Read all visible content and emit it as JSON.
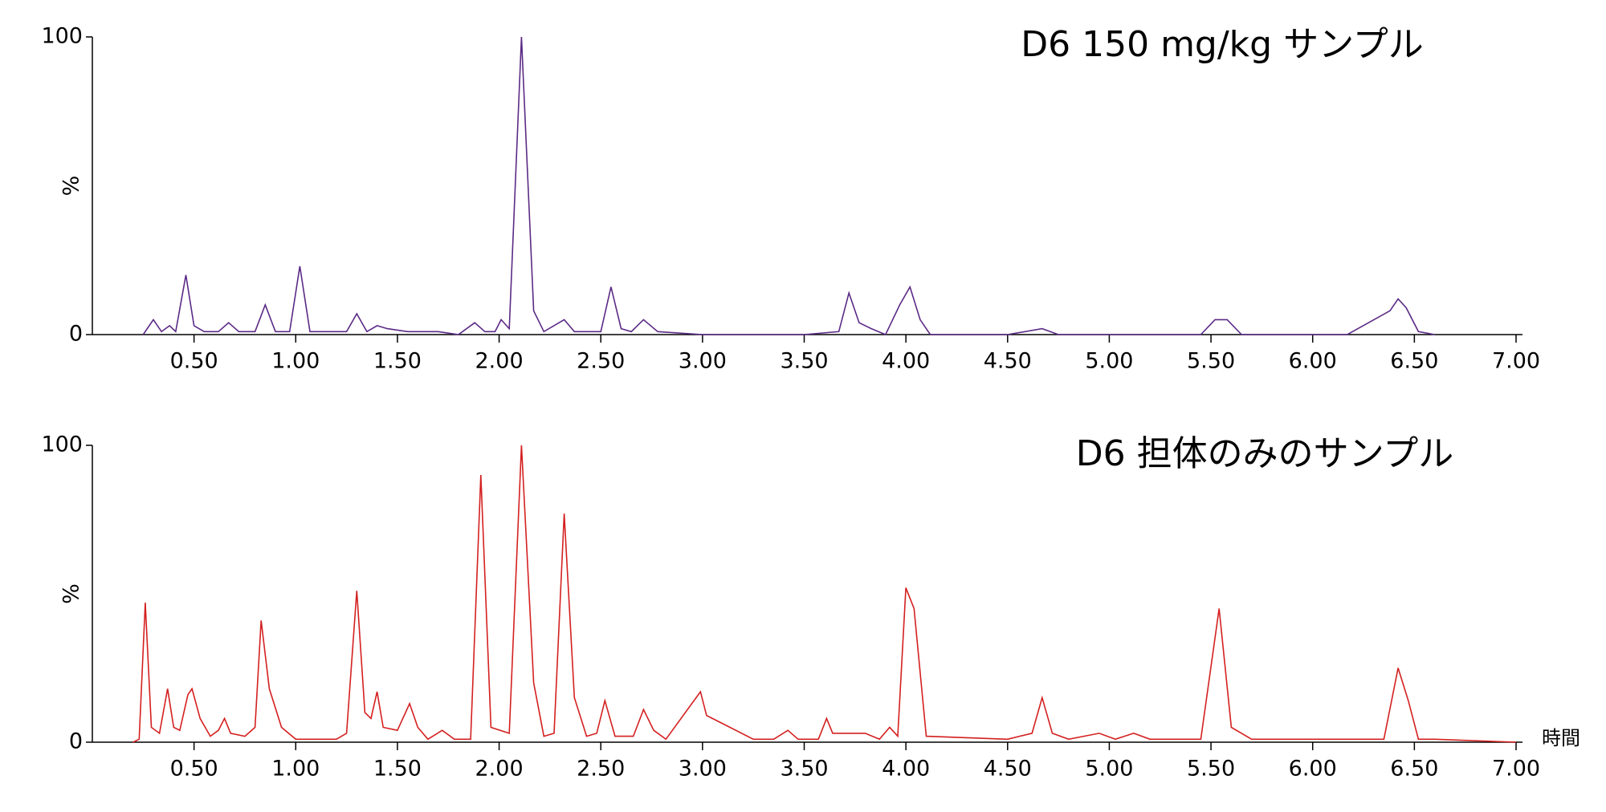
{
  "chart_data": [
    {
      "type": "line",
      "title": "D6 150 mg/kg サンプル",
      "y_label": "%",
      "color": "#5b2a86",
      "x": [
        0.25,
        0.3,
        0.34,
        0.38,
        0.41,
        0.46,
        0.5,
        0.55,
        0.62,
        0.67,
        0.72,
        0.8,
        0.85,
        0.9,
        0.97,
        1.02,
        1.07,
        1.15,
        1.25,
        1.3,
        1.35,
        1.4,
        1.45,
        1.55,
        1.7,
        1.8,
        1.88,
        1.93,
        1.98,
        2.01,
        2.05,
        2.11,
        2.17,
        2.22,
        2.32,
        2.37,
        2.5,
        2.55,
        2.6,
        2.65,
        2.71,
        2.78,
        3.0,
        3.5,
        3.67,
        3.72,
        3.77,
        3.83,
        3.9,
        3.97,
        4.02,
        4.07,
        4.12,
        4.5,
        4.67,
        4.75,
        5.45,
        5.52,
        5.58,
        5.65,
        6.17,
        6.38,
        6.42,
        6.46,
        6.52,
        6.6
      ],
      "values": [
        0,
        5,
        1,
        3,
        1,
        20,
        3,
        1,
        1,
        4,
        1,
        1,
        10,
        1,
        1,
        23,
        1,
        1,
        1,
        7,
        1,
        3,
        2,
        1,
        1,
        0,
        4,
        1,
        1,
        5,
        2,
        100,
        8,
        1,
        5,
        1,
        1,
        16,
        2,
        1,
        5,
        1,
        0,
        0,
        1,
        14,
        4,
        2,
        0,
        10,
        16,
        5,
        0,
        0,
        2,
        0,
        0,
        5,
        5,
        0,
        0,
        8,
        12,
        9,
        1,
        0
      ],
      "xlim": [
        0,
        7
      ],
      "ylim": [
        0,
        100
      ],
      "yticks": [
        0,
        100
      ],
      "xticks": [
        {
          "value": 0.5,
          "label": "0.50"
        },
        {
          "value": 1,
          "label": "1.00"
        },
        {
          "value": 1.5,
          "label": "1.50"
        },
        {
          "value": 2,
          "label": "2.00"
        },
        {
          "value": 2.5,
          "label": "2.50"
        },
        {
          "value": 3,
          "label": "3.00"
        },
        {
          "value": 3.5,
          "label": "3.50"
        },
        {
          "value": 4,
          "label": "4.00"
        },
        {
          "value": 4.5,
          "label": "4.50"
        },
        {
          "value": 5,
          "label": "5.00"
        },
        {
          "value": 5.5,
          "label": "5.50"
        },
        {
          "value": 6,
          "label": "6.00"
        },
        {
          "value": 6.5,
          "label": "6.50"
        },
        {
          "value": 7,
          "label": "7.00"
        }
      ]
    },
    {
      "type": "line",
      "title": "D6 担体のみのサンプル",
      "y_label": "%",
      "x_label": "時間",
      "color": "#d42020",
      "x": [
        0.2,
        0.23,
        0.26,
        0.29,
        0.33,
        0.37,
        0.4,
        0.43,
        0.47,
        0.49,
        0.53,
        0.58,
        0.62,
        0.65,
        0.68,
        0.75,
        0.8,
        0.83,
        0.87,
        0.93,
        1.0,
        1.2,
        1.25,
        1.3,
        1.34,
        1.37,
        1.4,
        1.43,
        1.5,
        1.56,
        1.6,
        1.65,
        1.72,
        1.78,
        1.86,
        1.91,
        1.96,
        2.05,
        2.11,
        2.17,
        2.22,
        2.27,
        2.32,
        2.37,
        2.43,
        2.48,
        2.52,
        2.57,
        2.66,
        2.71,
        2.76,
        2.82,
        2.99,
        3.02,
        3.25,
        3.35,
        3.42,
        3.47,
        3.57,
        3.61,
        3.64,
        3.8,
        3.87,
        3.92,
        3.96,
        4.0,
        4.04,
        4.1,
        4.5,
        4.62,
        4.67,
        4.72,
        4.8,
        4.95,
        5.03,
        5.12,
        5.2,
        5.45,
        5.54,
        5.6,
        5.7,
        6.35,
        6.42,
        6.47,
        6.52,
        6.6,
        7.0
      ],
      "values": [
        0,
        1,
        47,
        5,
        3,
        18,
        5,
        4,
        16,
        18,
        8,
        2,
        4,
        8,
        3,
        2,
        5,
        41,
        18,
        5,
        1,
        1,
        3,
        51,
        10,
        8,
        17,
        5,
        4,
        13,
        5,
        1,
        4,
        1,
        1,
        90,
        5,
        3,
        100,
        20,
        2,
        3,
        77,
        15,
        2,
        3,
        14,
        2,
        2,
        11,
        4,
        1,
        17,
        9,
        1,
        1,
        4,
        1,
        1,
        8,
        3,
        3,
        1,
        5,
        2,
        52,
        45,
        2,
        1,
        3,
        15,
        3,
        1,
        3,
        1,
        3,
        1,
        1,
        45,
        5,
        1,
        1,
        25,
        14,
        1,
        1,
        0
      ],
      "xlim": [
        0,
        7
      ],
      "ylim": [
        0,
        100
      ],
      "yticks": [
        0,
        100
      ],
      "xticks": [
        {
          "value": 0.5,
          "label": "0.50"
        },
        {
          "value": 1,
          "label": "1.00"
        },
        {
          "value": 1.5,
          "label": "1.50"
        },
        {
          "value": 2,
          "label": "2.00"
        },
        {
          "value": 2.5,
          "label": "2.50"
        },
        {
          "value": 3,
          "label": "3.00"
        },
        {
          "value": 3.5,
          "label": "3.50"
        },
        {
          "value": 4,
          "label": "4.00"
        },
        {
          "value": 4.5,
          "label": "4.50"
        },
        {
          "value": 5,
          "label": "5.00"
        },
        {
          "value": 5.5,
          "label": "5.50"
        },
        {
          "value": 6,
          "label": "6.00"
        },
        {
          "value": 6.5,
          "label": "6.50"
        },
        {
          "value": 7,
          "label": "7.00"
        }
      ]
    }
  ]
}
